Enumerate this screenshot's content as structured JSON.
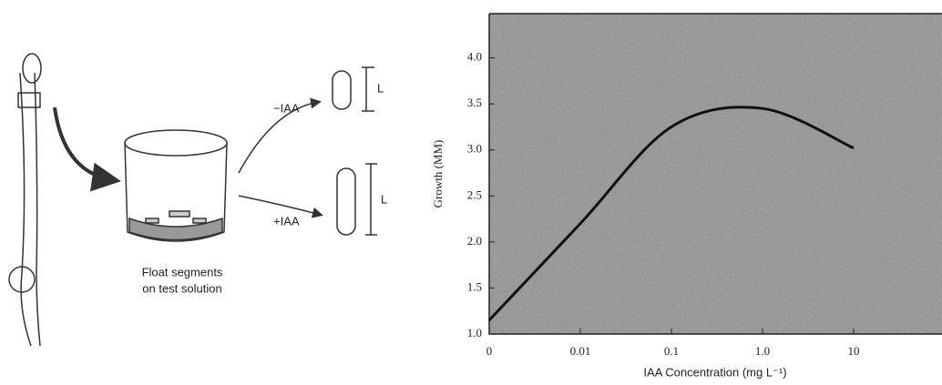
{
  "diagram": {
    "minus_label": "−IAA",
    "plus_label": "+IAA",
    "length_label_top": "L",
    "length_label_bottom": "L",
    "caption_line1": "Float segments",
    "caption_line2": "on test solution"
  },
  "chart_data": {
    "type": "line",
    "x_label": "IAA Concentration (mg L⁻¹)",
    "y_label": "Growth (MM)",
    "categories": [
      "0",
      "0.01",
      "0.1",
      "1.0",
      "10"
    ],
    "values": [
      1.15,
      2.2,
      3.25,
      3.45,
      3.02
    ],
    "color": "#111111",
    "ylim": [
      1.0,
      4.48
    ],
    "yticks": [
      {
        "value": 1,
        "label": "1.0"
      },
      1.5,
      {
        "value": 2,
        "label": "2.0"
      },
      2.5,
      {
        "value": 3,
        "label": "3.0"
      },
      3.5,
      {
        "value": 4,
        "label": "4.0"
      }
    ]
  }
}
